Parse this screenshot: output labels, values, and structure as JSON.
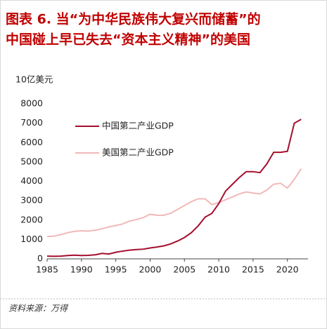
{
  "chart_data": {
    "type": "line",
    "title": [
      "图表 6.  当“为中华民族伟大复兴而储蓄”的",
      "中国碰上早已失去“资本主义精神”的美国"
    ],
    "y_axis_label": "10亿美元",
    "source": "资料来源：万得",
    "x": [
      1985,
      1986,
      1987,
      1988,
      1989,
      1990,
      1991,
      1992,
      1993,
      1994,
      1995,
      1996,
      1997,
      1998,
      1999,
      2000,
      2001,
      2002,
      2003,
      2004,
      2005,
      2006,
      2007,
      2008,
      2009,
      2010,
      2011,
      2012,
      2013,
      2014,
      2015,
      2016,
      2017,
      2018,
      2019,
      2020,
      2021,
      2022
    ],
    "series": [
      {
        "name": "中国第二产业GDP",
        "color": "#a50e2d",
        "values": [
          140,
          130,
          140,
          170,
          190,
          170,
          180,
          210,
          280,
          250,
          340,
          400,
          450,
          480,
          500,
          560,
          610,
          670,
          770,
          920,
          1100,
          1350,
          1700,
          2150,
          2350,
          2850,
          3500,
          3850,
          4200,
          4500,
          4500,
          4450,
          4900,
          5500,
          5500,
          5550,
          7000,
          7200
        ]
      },
      {
        "name": "美国第二产业GDP",
        "color": "#f2b8b8",
        "values": [
          1150,
          1170,
          1250,
          1350,
          1420,
          1450,
          1430,
          1480,
          1550,
          1650,
          1720,
          1800,
          1950,
          2030,
          2130,
          2300,
          2250,
          2250,
          2350,
          2550,
          2750,
          2950,
          3100,
          3100,
          2800,
          2900,
          3050,
          3200,
          3350,
          3450,
          3400,
          3350,
          3550,
          3850,
          3900,
          3650,
          4100,
          4650
        ]
      }
    ],
    "xlim": [
      1985,
      2023
    ],
    "xticks": [
      1985,
      1990,
      1995,
      2000,
      2005,
      2010,
      2015,
      2020
    ],
    "ylim": [
      0,
      8000
    ],
    "yticks": [
      0,
      1000,
      2000,
      3000,
      4000,
      5000,
      6000,
      7000,
      8000
    ],
    "grid": false
  }
}
